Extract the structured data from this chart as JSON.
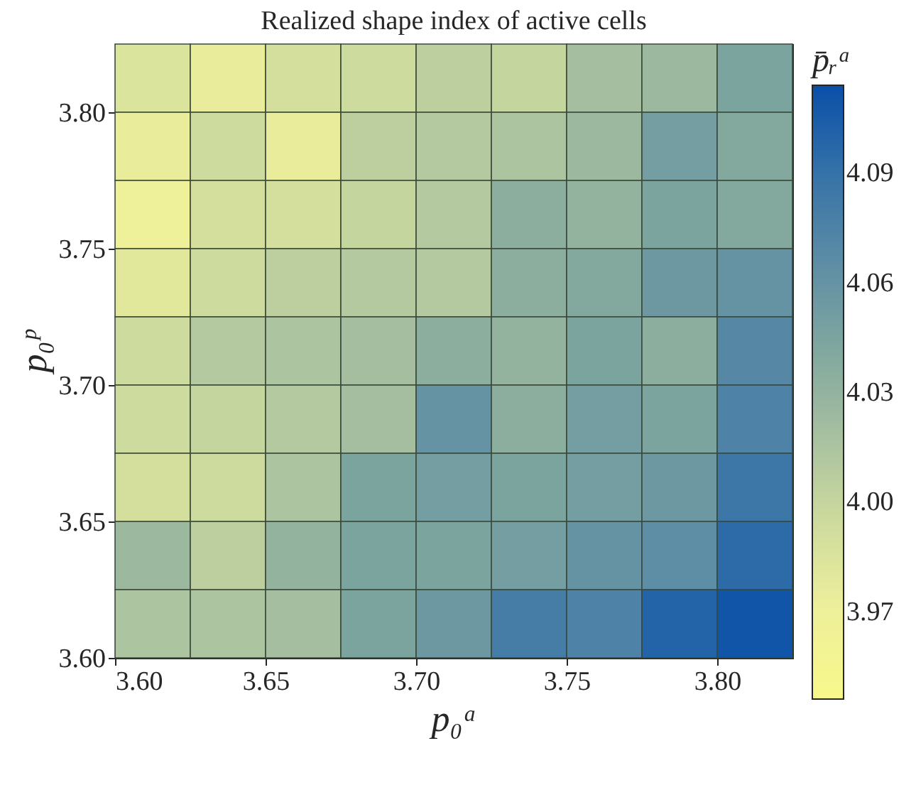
{
  "chart_data": {
    "type": "heatmap",
    "title": "Realized shape index of active cells",
    "xlabel": "p₀ᵃ",
    "ylabel": "p₀ᵖ",
    "clabel": "p̄ᵣᵃ",
    "xlim": [
      3.6,
      3.825
    ],
    "ylim": [
      3.6,
      3.825
    ],
    "xticks": [
      {
        "value": 3.6,
        "label": "3.60"
      },
      {
        "value": 3.65,
        "label": "3.65"
      },
      {
        "value": 3.7,
        "label": "3.70"
      },
      {
        "value": 3.75,
        "label": "3.75"
      },
      {
        "value": 3.8,
        "label": "3.80"
      }
    ],
    "yticks": [
      {
        "value": 3.6,
        "label": "3.60"
      },
      {
        "value": 3.65,
        "label": "3.65"
      },
      {
        "value": 3.7,
        "label": "3.70"
      },
      {
        "value": 3.75,
        "label": "3.75"
      },
      {
        "value": 3.8,
        "label": "3.80"
      }
    ],
    "clim": [
      3.946,
      4.114
    ],
    "cticks": [
      3.97,
      {
        "value": 4.0,
        "label": "4.00"
      },
      4.03,
      4.06,
      4.09
    ],
    "cells": [
      [
        3.985,
        3.975,
        3.99,
        3.995,
        4.005,
        4.0,
        4.02,
        4.025,
        4.045
      ],
      [
        3.975,
        3.995,
        3.975,
        4.005,
        4.01,
        4.015,
        4.025,
        4.05,
        4.04
      ],
      [
        3.97,
        3.99,
        3.99,
        4.0,
        4.01,
        4.035,
        4.03,
        4.045,
        4.04
      ],
      [
        3.98,
        3.995,
        4.005,
        4.01,
        4.01,
        4.035,
        4.04,
        4.055,
        4.06
      ],
      [
        3.995,
        4.01,
        4.015,
        4.02,
        4.035,
        4.03,
        4.045,
        4.035,
        4.07
      ],
      [
        3.995,
        4.0,
        4.01,
        4.02,
        4.06,
        4.035,
        4.05,
        4.045,
        4.075
      ],
      [
        3.99,
        3.995,
        4.015,
        4.045,
        4.05,
        4.045,
        4.05,
        4.055,
        4.085
      ],
      [
        4.025,
        4.005,
        4.03,
        4.045,
        4.045,
        4.05,
        4.06,
        4.065,
        4.095
      ],
      [
        4.015,
        4.015,
        4.02,
        4.045,
        4.055,
        4.08,
        4.075,
        4.1,
        4.11
      ]
    ]
  }
}
